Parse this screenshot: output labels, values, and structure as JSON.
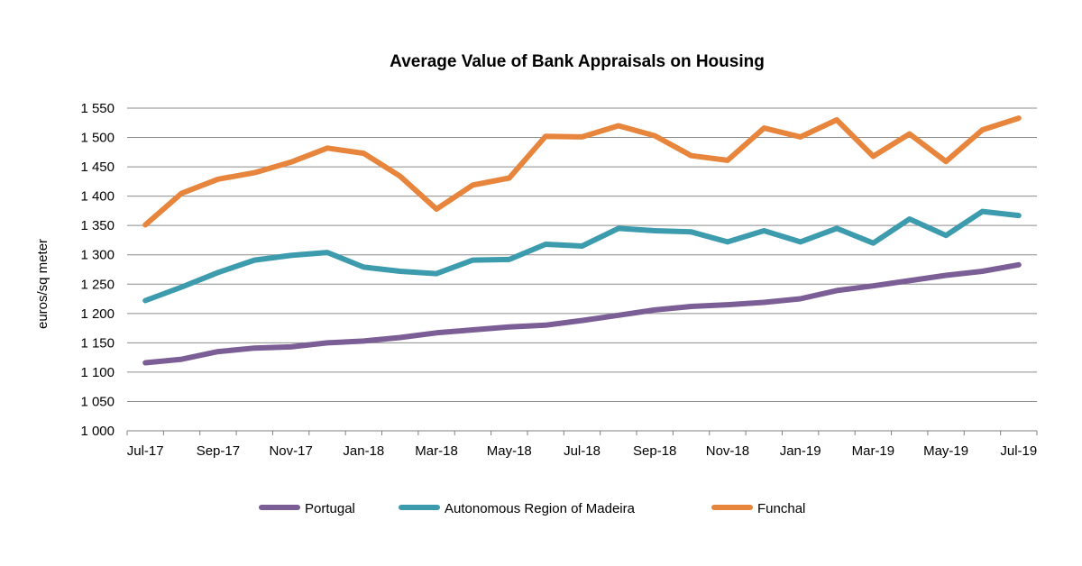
{
  "chart_data": {
    "type": "line",
    "title": "Average Value of Bank Appraisals on Housing",
    "ylabel": "euros/sq meter",
    "xlabel": "",
    "ylim": [
      1000,
      1550
    ],
    "y_ticks": [
      1000,
      1050,
      1100,
      1150,
      1200,
      1250,
      1300,
      1350,
      1400,
      1450,
      1500,
      1550
    ],
    "y_tick_labels": [
      "1 000",
      "1 050",
      "1 100",
      "1 150",
      "1 200",
      "1 250",
      "1 300",
      "1 350",
      "1 400",
      "1 450",
      "1 500",
      "1 550"
    ],
    "x": [
      "Jul-17",
      "Aug-17",
      "Sep-17",
      "Oct-17",
      "Nov-17",
      "Dec-17",
      "Jan-18",
      "Feb-18",
      "Mar-18",
      "Apr-18",
      "May-18",
      "Jun-18",
      "Jul-18",
      "Aug-18",
      "Sep-18",
      "Oct-18",
      "Nov-18",
      "Dec-18",
      "Jan-19",
      "Feb-19",
      "Mar-19",
      "Apr-19",
      "May-19",
      "Jun-19",
      "Jul-19"
    ],
    "x_tick_labels": [
      "Jul-17",
      "Sep-17",
      "Nov-17",
      "Jan-18",
      "Mar-18",
      "May-18",
      "Jul-18",
      "Sep-18",
      "Nov-18",
      "Jan-19",
      "Mar-19",
      "May-19",
      "Jul-19"
    ],
    "grid": true,
    "legend_position": "bottom",
    "series": [
      {
        "name": "Portugal",
        "color": "#7b5e96",
        "values": [
          1116,
          1122,
          1135,
          1141,
          1143,
          1150,
          1153,
          1159,
          1167,
          1172,
          1177,
          1180,
          1188,
          1197,
          1206,
          1212,
          1215,
          1219,
          1225,
          1239,
          1247,
          1256,
          1265,
          1272,
          1283
        ]
      },
      {
        "name": "Autonomous Region of Madeira",
        "color": "#3d9bae",
        "values": [
          1222,
          1245,
          1270,
          1291,
          1299,
          1304,
          1279,
          1272,
          1268,
          1291,
          1292,
          1318,
          1315,
          1345,
          1341,
          1339,
          1322,
          1341,
          1322,
          1345,
          1320,
          1361,
          1333,
          1374,
          1367
        ]
      },
      {
        "name": "Funchal",
        "color": "#e8853c",
        "values": [
          1351,
          1405,
          1429,
          1440,
          1458,
          1482,
          1473,
          1434,
          1378,
          1419,
          1431,
          1502,
          1501,
          1520,
          1503,
          1469,
          1461,
          1516,
          1501,
          1530,
          1468,
          1506,
          1459,
          1513,
          1533
        ]
      }
    ]
  }
}
